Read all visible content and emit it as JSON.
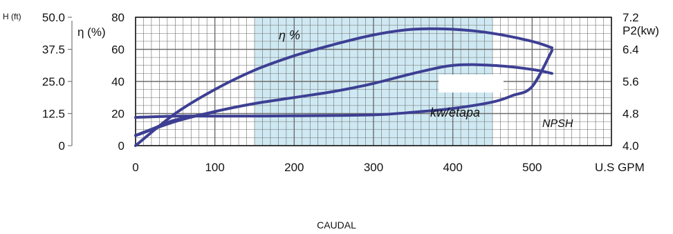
{
  "footer": {
    "label": "CAUDAL"
  },
  "chart_data": {
    "type": "line",
    "xlabel": "U.S GPM",
    "xlim": [
      0,
      600
    ],
    "x_ticks": [
      "0",
      "100",
      "200",
      "300",
      "400",
      "500"
    ],
    "axes": {
      "head": {
        "label": "H (ft)",
        "ticks": [
          "50.0",
          "37.5",
          "25.0",
          "12.5",
          "0"
        ],
        "ylim": [
          0,
          50
        ]
      },
      "efficiency": {
        "label": "η (%)",
        "ticks": [
          "80",
          "60",
          "40",
          "20",
          "0"
        ],
        "ylim": [
          0,
          80
        ]
      },
      "power": {
        "label": "P2(kw)",
        "ticks": [
          "7.2",
          "6.4",
          "5.6",
          "4.8",
          "4.0"
        ],
        "ylim": [
          4.0,
          7.2
        ]
      }
    },
    "shaded_region": {
      "x": [
        150,
        450
      ]
    },
    "colors": {
      "curve": "#3d3f93",
      "grid": "#6b6b6b",
      "shade": "#cfe9f3"
    },
    "series": [
      {
        "name": "η %",
        "axis": "efficiency",
        "x": [
          0,
          50,
          100,
          150,
          200,
          250,
          300,
          350,
          400,
          450,
          500,
          525
        ],
        "y": [
          0,
          20,
          35,
          47,
          56,
          63,
          69,
          72.5,
          72.5,
          70,
          65,
          61
        ]
      },
      {
        "name": "kw/etapa",
        "axis": "power",
        "x": [
          0,
          50,
          100,
          150,
          200,
          250,
          300,
          350,
          400,
          450,
          500,
          525
        ],
        "y": [
          4.25,
          4.6,
          4.85,
          5.05,
          5.2,
          5.35,
          5.55,
          5.8,
          6.0,
          6.0,
          5.9,
          5.8
        ]
      },
      {
        "name": "NPSH",
        "axis": "head",
        "x": [
          0,
          50,
          100,
          200,
          300,
          350,
          400,
          450,
          475,
          500,
          525
        ],
        "y": [
          11,
          11.5,
          11.5,
          11.6,
          12,
          13,
          14.5,
          17,
          19.5,
          23,
          37
        ]
      },
      {
        "name": "H",
        "axis": "head",
        "x": [
          0,
          25,
          50,
          100
        ],
        "y": [
          4,
          7,
          10,
          13
        ]
      }
    ]
  }
}
